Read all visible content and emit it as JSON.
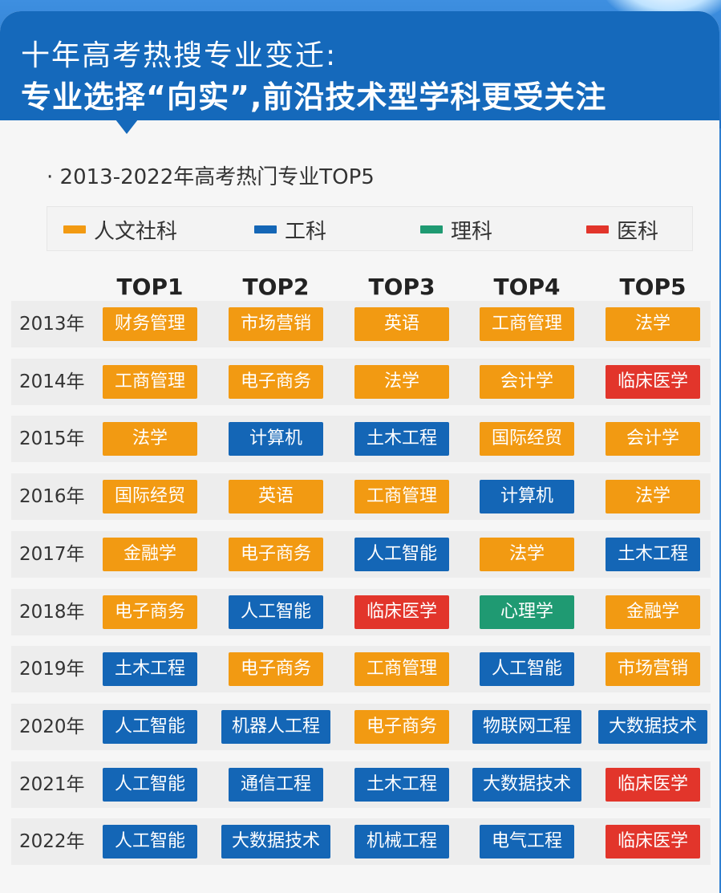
{
  "title_line1": "十年高考热搜专业变迁:",
  "title_line2": "专业选择“向实”,前沿技术型学科更受关注",
  "subtitle": "· 2013-2022年高考热门专业TOP5",
  "colors": {
    "humanities": "#f29a12",
    "engineering": "#1466b6",
    "science": "#1f9a72",
    "medicine": "#e2352b"
  },
  "legend": [
    {
      "key": "humanities",
      "label": "人文社科"
    },
    {
      "key": "engineering",
      "label": "工科"
    },
    {
      "key": "science",
      "label": "理科"
    },
    {
      "key": "medicine",
      "label": "医科"
    }
  ],
  "columns": [
    "TOP1",
    "TOP2",
    "TOP3",
    "TOP4",
    "TOP5"
  ],
  "rows": [
    {
      "year": "2013年",
      "cells": [
        {
          "name": "财务管理",
          "cat": "humanities"
        },
        {
          "name": "市场营销",
          "cat": "humanities"
        },
        {
          "name": "英语",
          "cat": "humanities"
        },
        {
          "name": "工商管理",
          "cat": "humanities"
        },
        {
          "name": "法学",
          "cat": "humanities"
        }
      ]
    },
    {
      "year": "2014年",
      "cells": [
        {
          "name": "工商管理",
          "cat": "humanities"
        },
        {
          "name": "电子商务",
          "cat": "humanities"
        },
        {
          "name": "法学",
          "cat": "humanities"
        },
        {
          "name": "会计学",
          "cat": "humanities"
        },
        {
          "name": "临床医学",
          "cat": "medicine"
        }
      ]
    },
    {
      "year": "2015年",
      "cells": [
        {
          "name": "法学",
          "cat": "humanities"
        },
        {
          "name": "计算机",
          "cat": "engineering"
        },
        {
          "name": "土木工程",
          "cat": "engineering"
        },
        {
          "name": "国际经贸",
          "cat": "humanities"
        },
        {
          "name": "会计学",
          "cat": "humanities"
        }
      ]
    },
    {
      "year": "2016年",
      "cells": [
        {
          "name": "国际经贸",
          "cat": "humanities"
        },
        {
          "name": "英语",
          "cat": "humanities"
        },
        {
          "name": "工商管理",
          "cat": "humanities"
        },
        {
          "name": "计算机",
          "cat": "engineering"
        },
        {
          "name": "法学",
          "cat": "humanities"
        }
      ]
    },
    {
      "year": "2017年",
      "cells": [
        {
          "name": "金融学",
          "cat": "humanities"
        },
        {
          "name": "电子商务",
          "cat": "humanities"
        },
        {
          "name": "人工智能",
          "cat": "engineering"
        },
        {
          "name": "法学",
          "cat": "humanities"
        },
        {
          "name": "土木工程",
          "cat": "engineering"
        }
      ]
    },
    {
      "year": "2018年",
      "cells": [
        {
          "name": "电子商务",
          "cat": "humanities"
        },
        {
          "name": "人工智能",
          "cat": "engineering"
        },
        {
          "name": "临床医学",
          "cat": "medicine"
        },
        {
          "name": "心理学",
          "cat": "science"
        },
        {
          "name": "金融学",
          "cat": "humanities"
        }
      ]
    },
    {
      "year": "2019年",
      "cells": [
        {
          "name": "土木工程",
          "cat": "engineering"
        },
        {
          "name": "电子商务",
          "cat": "humanities"
        },
        {
          "name": "工商管理",
          "cat": "humanities"
        },
        {
          "name": "人工智能",
          "cat": "engineering"
        },
        {
          "name": "市场营销",
          "cat": "humanities"
        }
      ]
    },
    {
      "year": "2020年",
      "cells": [
        {
          "name": "人工智能",
          "cat": "engineering"
        },
        {
          "name": "机器人工程",
          "cat": "engineering"
        },
        {
          "name": "电子商务",
          "cat": "humanities"
        },
        {
          "name": "物联网工程",
          "cat": "engineering"
        },
        {
          "name": "大数据技术",
          "cat": "engineering"
        }
      ]
    },
    {
      "year": "2021年",
      "cells": [
        {
          "name": "人工智能",
          "cat": "engineering"
        },
        {
          "name": "通信工程",
          "cat": "engineering"
        },
        {
          "name": "土木工程",
          "cat": "engineering"
        },
        {
          "name": "大数据技术",
          "cat": "engineering"
        },
        {
          "name": "临床医学",
          "cat": "medicine"
        }
      ]
    },
    {
      "year": "2022年",
      "cells": [
        {
          "name": "人工智能",
          "cat": "engineering"
        },
        {
          "name": "大数据技术",
          "cat": "engineering"
        },
        {
          "name": "机械工程",
          "cat": "engineering"
        },
        {
          "name": "电气工程",
          "cat": "engineering"
        },
        {
          "name": "临床医学",
          "cat": "medicine"
        }
      ]
    }
  ]
}
